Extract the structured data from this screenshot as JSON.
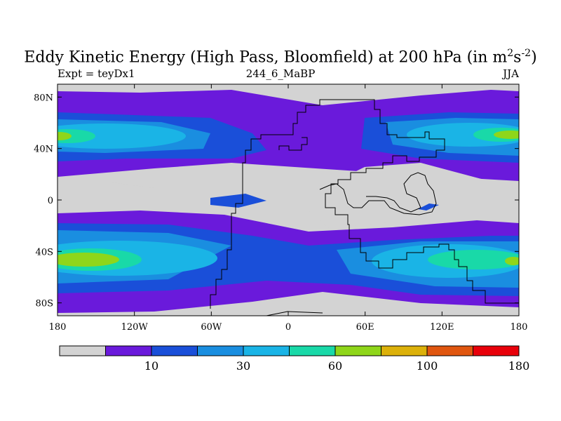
{
  "chart_data": {
    "type": "heatmap",
    "title_main": "Eddy Kinetic Energy (High Pass, Bloomfield) at 200 hPa (in m",
    "title_sup1": "2",
    "title_s": "s",
    "title_sup2": "-2",
    "title_close": ")",
    "subtitle_left": "Expt = teyDx1",
    "subtitle_center": "244_6_MaBP",
    "subtitle_right": "JJA",
    "x_range": [
      -180,
      180
    ],
    "y_range": [
      -90,
      90
    ],
    "x_ticks": [
      {
        "value": -180,
        "label": "180"
      },
      {
        "value": -120,
        "label": "120W"
      },
      {
        "value": -60,
        "label": "60W"
      },
      {
        "value": 0,
        "label": "0"
      },
      {
        "value": 60,
        "label": "60E"
      },
      {
        "value": 120,
        "label": "120E"
      },
      {
        "value": 180,
        "label": "180"
      }
    ],
    "y_ticks": [
      {
        "value": 80,
        "label": "80N"
      },
      {
        "value": 40,
        "label": "40N"
      },
      {
        "value": 0,
        "label": "0"
      },
      {
        "value": -40,
        "label": "40S"
      },
      {
        "value": -80,
        "label": "80S"
      }
    ],
    "color_levels": [
      "#d3d3d3",
      "#6a1adb",
      "#1a4fd9",
      "#1a8ee0",
      "#1ab4e6",
      "#19d9a8",
      "#8fd61a",
      "#dcb10a",
      "#e0560f",
      "#e8000a"
    ],
    "colorbar_labels": [
      {
        "index": 2,
        "label": "10"
      },
      {
        "index": 4,
        "label": "30"
      },
      {
        "index": 6,
        "label": "60"
      },
      {
        "index": 8,
        "label": "100"
      },
      {
        "index": 10,
        "label": "180"
      }
    ]
  }
}
